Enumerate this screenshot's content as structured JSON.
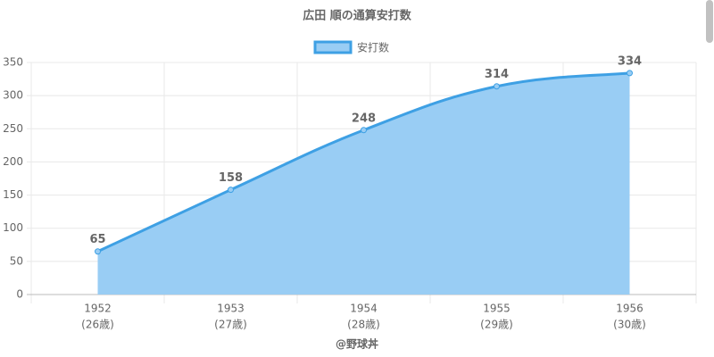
{
  "chart_data": {
    "type": "line",
    "title": "広田 順の通算安打数",
    "categories": [
      [
        "1952",
        "(26歳)"
      ],
      [
        "1953",
        "(27歳)"
      ],
      [
        "1954",
        "(28歳)"
      ],
      [
        "1955",
        "(29歳)"
      ],
      [
        "1956",
        "(30歳)"
      ]
    ],
    "series": [
      {
        "name": "安打数",
        "color": "#3ea0e4",
        "fill": "#99cdf4",
        "values": [
          65,
          158,
          248,
          314,
          334
        ]
      }
    ],
    "x_label": "@野球丼",
    "ylim": [
      0,
      350
    ],
    "yticks": [
      0,
      50,
      100,
      150,
      200,
      250,
      300,
      350
    ],
    "grid": true
  }
}
